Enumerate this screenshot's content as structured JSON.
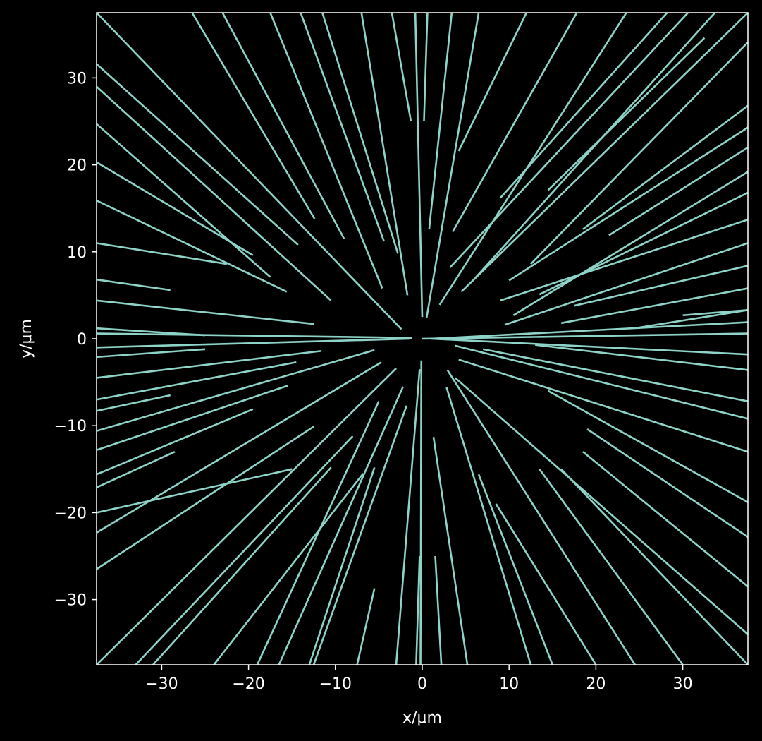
{
  "chart_data": {
    "type": "line",
    "title": "",
    "xlabel": "x/μm",
    "ylabel": "y/μm",
    "xlim": [
      -37.5,
      37.5
    ],
    "ylim": [
      -37.5,
      37.5
    ],
    "xticks": [
      -30,
      -20,
      -10,
      0,
      10,
      20,
      30
    ],
    "yticks": [
      -30,
      -20,
      -10,
      0,
      10,
      20,
      30
    ],
    "xtick_labels": [
      "−30",
      "−20",
      "−10",
      "0",
      "10",
      "20",
      "30"
    ],
    "ytick_labels": [
      "−30",
      "−20",
      "−10",
      "0",
      "10",
      "20",
      "30"
    ],
    "grid": false,
    "legend": "none",
    "colors": {
      "background": "#000000",
      "line": "#8dd3c7",
      "axes": "#ffffff",
      "text": "#ffffff"
    },
    "series": [
      {
        "values": [
          [
            0.0,
            0.0
          ],
          [
            37.5,
            0.6
          ]
        ]
      },
      {
        "values": [
          [
            1.1,
            0.0
          ],
          [
            37.5,
            -1.8
          ]
        ]
      },
      {
        "values": [
          [
            -1.5,
            0.0
          ],
          [
            -37.5,
            -1.0
          ]
        ]
      },
      {
        "values": [
          [
            -1.2,
            0.1
          ],
          [
            -37.5,
            0.6
          ]
        ]
      },
      {
        "values": [
          [
            1.0,
            0.0
          ],
          [
            37.5,
            1.9
          ]
        ]
      },
      {
        "values": [
          [
            25.0,
            1.3
          ],
          [
            37.5,
            3.3
          ]
        ]
      },
      {
        "values": [
          [
            30.0,
            2.7
          ],
          [
            37.5,
            3.3
          ]
        ]
      },
      {
        "values": [
          [
            9.5,
            1.6
          ],
          [
            37.5,
            11.0
          ]
        ]
      },
      {
        "values": [
          [
            16.0,
            1.8
          ],
          [
            37.5,
            5.8
          ]
        ]
      },
      {
        "values": [
          [
            17.5,
            3.8
          ],
          [
            37.5,
            8.4
          ]
        ]
      },
      {
        "values": [
          [
            10.0,
            6.7
          ],
          [
            37.5,
            24.3
          ]
        ]
      },
      {
        "values": [
          [
            9.0,
            4.4
          ],
          [
            37.5,
            13.7
          ]
        ]
      },
      {
        "values": [
          [
            13.5,
            5.1
          ],
          [
            37.5,
            16.8
          ]
        ]
      },
      {
        "values": [
          [
            10.5,
            2.7
          ],
          [
            37.5,
            19.2
          ]
        ]
      },
      {
        "values": [
          [
            21.5,
            11.9
          ],
          [
            37.5,
            22.0
          ]
        ]
      },
      {
        "values": [
          [
            18.5,
            12.6
          ],
          [
            37.5,
            26.8
          ]
        ]
      },
      {
        "values": [
          [
            12.5,
            8.6
          ],
          [
            37.5,
            34.1
          ]
        ]
      },
      {
        "values": [
          [
            4.5,
            5.4
          ],
          [
            37.5,
            37.5
          ]
        ]
      },
      {
        "values": [
          [
            6.2,
            7.1
          ],
          [
            33.7,
            37.5
          ]
        ]
      },
      {
        "values": [
          [
            3.2,
            8.2
          ],
          [
            30.6,
            37.5
          ]
        ]
      },
      {
        "values": [
          [
            9.0,
            16.2
          ],
          [
            28.2,
            37.5
          ]
        ]
      },
      {
        "values": [
          [
            14.5,
            17.1
          ],
          [
            32.5,
            34.6
          ]
        ]
      },
      {
        "values": [
          [
            2.0,
            3.9
          ],
          [
            23.5,
            37.5
          ]
        ]
      },
      {
        "values": [
          [
            3.5,
            12.3
          ],
          [
            17.8,
            37.5
          ]
        ]
      },
      {
        "values": [
          [
            4.2,
            21.6
          ],
          [
            12.0,
            37.5
          ]
        ]
      },
      {
        "values": [
          [
            0.5,
            2.4
          ],
          [
            6.5,
            37.5
          ]
        ]
      },
      {
        "values": [
          [
            0.8,
            12.6
          ],
          [
            3.4,
            37.5
          ]
        ]
      },
      {
        "values": [
          [
            0.2,
            25.0
          ],
          [
            0.6,
            37.5
          ]
        ]
      },
      {
        "values": [
          [
            0.0,
            2.5
          ],
          [
            -0.8,
            37.5
          ]
        ]
      },
      {
        "values": [
          [
            -1.3,
            25.0
          ],
          [
            -3.5,
            37.5
          ]
        ]
      },
      {
        "values": [
          [
            -1.7,
            5.0
          ],
          [
            -7.0,
            37.5
          ]
        ]
      },
      {
        "values": [
          [
            -2.8,
            9.8
          ],
          [
            -11.5,
            37.5
          ]
        ]
      },
      {
        "values": [
          [
            -4.6,
            5.8
          ],
          [
            -17.5,
            37.5
          ]
        ]
      },
      {
        "values": [
          [
            -4.4,
            11.2
          ],
          [
            -14.0,
            37.5
          ]
        ]
      },
      {
        "values": [
          [
            -9.0,
            11.5
          ],
          [
            -23.0,
            37.5
          ]
        ]
      },
      {
        "values": [
          [
            -12.4,
            13.8
          ],
          [
            -26.5,
            37.5
          ]
        ]
      },
      {
        "values": [
          [
            -2.4,
            1.1
          ],
          [
            -37.5,
            37.5
          ]
        ]
      },
      {
        "values": [
          [
            -14.3,
            10.8
          ],
          [
            -37.5,
            31.6
          ]
        ]
      },
      {
        "values": [
          [
            -10.5,
            4.4
          ],
          [
            -37.5,
            29.0
          ]
        ]
      },
      {
        "values": [
          [
            -17.5,
            7.1
          ],
          [
            -37.5,
            24.7
          ]
        ]
      },
      {
        "values": [
          [
            -19.5,
            9.6
          ],
          [
            -37.5,
            20.3
          ]
        ]
      },
      {
        "values": [
          [
            -15.6,
            5.4
          ],
          [
            -37.5,
            15.9
          ]
        ]
      },
      {
        "values": [
          [
            -22.5,
            8.6
          ],
          [
            -37.5,
            11.0
          ]
        ]
      },
      {
        "values": [
          [
            -12.5,
            1.7
          ],
          [
            -37.5,
            4.4
          ]
        ]
      },
      {
        "values": [
          [
            -29.0,
            5.6
          ],
          [
            -37.5,
            6.8
          ]
        ]
      },
      {
        "values": [
          [
            -25.0,
            0.4
          ],
          [
            -37.5,
            1.2
          ]
        ]
      },
      {
        "values": [
          [
            -25.0,
            -1.2
          ],
          [
            -37.5,
            -2.1
          ]
        ]
      },
      {
        "values": [
          [
            -11.6,
            -1.4
          ],
          [
            -37.5,
            -4.5
          ]
        ]
      },
      {
        "values": [
          [
            -14.5,
            -2.7
          ],
          [
            -37.5,
            -7.0
          ]
        ]
      },
      {
        "values": [
          [
            -29.0,
            -6.5
          ],
          [
            -37.5,
            -8.3
          ]
        ]
      },
      {
        "values": [
          [
            -15.5,
            -5.4
          ],
          [
            -37.5,
            -12.8
          ]
        ]
      },
      {
        "values": [
          [
            -5.5,
            -1.3
          ],
          [
            -37.5,
            -10.6
          ]
        ]
      },
      {
        "values": [
          [
            -19.5,
            -8.1
          ],
          [
            -37.5,
            -15.6
          ]
        ]
      },
      {
        "values": [
          [
            -28.5,
            -13.0
          ],
          [
            -37.5,
            -17.1
          ]
        ]
      },
      {
        "values": [
          [
            -15.0,
            -15.0
          ],
          [
            -37.5,
            -20.0
          ]
        ]
      },
      {
        "values": [
          [
            -4.7,
            -2.7
          ],
          [
            -37.5,
            -22.3
          ]
        ]
      },
      {
        "values": [
          [
            -12.5,
            -10.1
          ],
          [
            -37.5,
            -26.5
          ]
        ]
      },
      {
        "values": [
          [
            -3.0,
            -3.4
          ],
          [
            -37.5,
            -37.5
          ]
        ]
      },
      {
        "values": [
          [
            -8.0,
            -11.2
          ],
          [
            -33.0,
            -37.5
          ]
        ]
      },
      {
        "values": [
          [
            -10.5,
            -14.8
          ],
          [
            -31.0,
            -37.5
          ]
        ]
      },
      {
        "values": [
          [
            -6.8,
            -15.5
          ],
          [
            -24.0,
            -37.5
          ]
        ]
      },
      {
        "values": [
          [
            -5.0,
            -7.2
          ],
          [
            -19.0,
            -37.5
          ]
        ]
      },
      {
        "values": [
          [
            -2.2,
            -5.5
          ],
          [
            -16.5,
            -37.5
          ]
        ]
      },
      {
        "values": [
          [
            -1.8,
            -7.7
          ],
          [
            -12.5,
            -37.5
          ]
        ]
      },
      {
        "values": [
          [
            -5.5,
            -14.8
          ],
          [
            -13.0,
            -37.5
          ]
        ]
      },
      {
        "values": [
          [
            -5.5,
            -28.7
          ],
          [
            -7.5,
            -37.5
          ]
        ]
      },
      {
        "values": [
          [
            -0.3,
            -3.5
          ],
          [
            -3.0,
            -37.5
          ]
        ]
      },
      {
        "values": [
          [
            -0.1,
            -2.5
          ],
          [
            -0.2,
            -37.5
          ]
        ]
      },
      {
        "values": [
          [
            -0.3,
            -25.0
          ],
          [
            -0.7,
            -37.5
          ]
        ]
      },
      {
        "values": [
          [
            1.5,
            -25.0
          ],
          [
            2.2,
            -37.5
          ]
        ]
      },
      {
        "values": [
          [
            1.3,
            -11.3
          ],
          [
            5.2,
            -37.5
          ]
        ]
      },
      {
        "values": [
          [
            2.8,
            -5.6
          ],
          [
            12.5,
            -37.5
          ]
        ]
      },
      {
        "values": [
          [
            6.5,
            -15.6
          ],
          [
            15.0,
            -37.5
          ]
        ]
      },
      {
        "values": [
          [
            8.5,
            -19.0
          ],
          [
            20.0,
            -37.5
          ]
        ]
      },
      {
        "values": [
          [
            2.9,
            -3.6
          ],
          [
            24.5,
            -37.5
          ]
        ]
      },
      {
        "values": [
          [
            13.5,
            -15.0
          ],
          [
            30.0,
            -37.5
          ]
        ]
      },
      {
        "values": [
          [
            16.0,
            -15.0
          ],
          [
            37.5,
            -37.5
          ]
        ]
      },
      {
        "values": [
          [
            3.8,
            -4.5
          ],
          [
            37.5,
            -34.0
          ]
        ]
      },
      {
        "values": [
          [
            18.5,
            -13.0
          ],
          [
            37.5,
            -28.5
          ]
        ]
      },
      {
        "values": [
          [
            19.0,
            -10.4
          ],
          [
            37.5,
            -22.8
          ]
        ]
      },
      {
        "values": [
          [
            14.5,
            -6.0
          ],
          [
            37.5,
            -18.8
          ]
        ]
      },
      {
        "values": [
          [
            4.2,
            -2.4
          ],
          [
            37.5,
            -13.0
          ]
        ]
      },
      {
        "values": [
          [
            7.0,
            -1.2
          ],
          [
            37.5,
            -7.2
          ]
        ]
      },
      {
        "values": [
          [
            13.0,
            -0.7
          ],
          [
            37.5,
            -3.6
          ]
        ]
      },
      {
        "values": [
          [
            3.8,
            -0.8
          ],
          [
            37.5,
            -9.2
          ]
        ]
      }
    ]
  }
}
